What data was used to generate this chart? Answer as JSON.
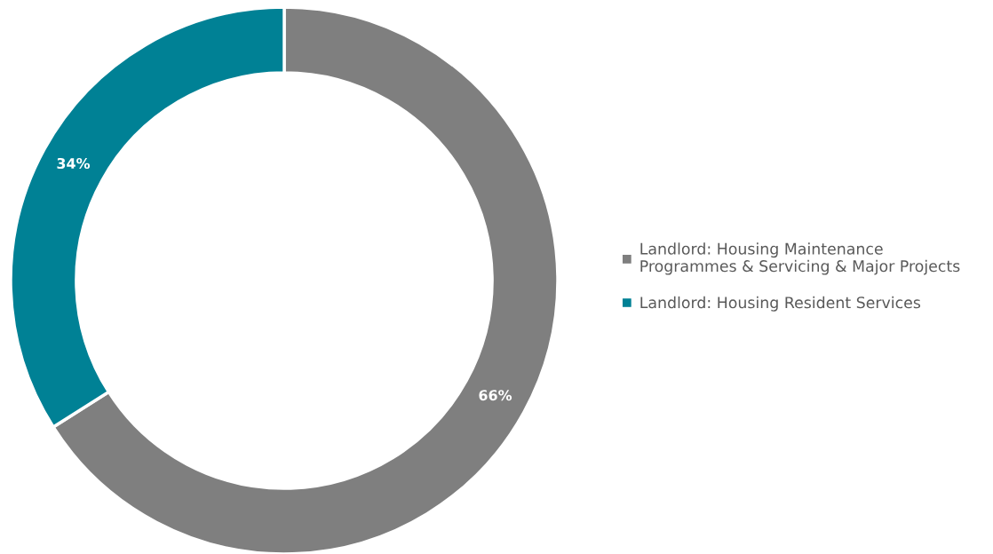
{
  "chart_data": {
    "type": "donut",
    "categories": [
      "Landlord: Housing Maintenance Programmes & Servicing & Major Projects",
      "Landlord: Housing Resident Services"
    ],
    "values": [
      66,
      34
    ],
    "value_labels": [
      "66%",
      "34%"
    ],
    "colors": [
      "#7f7f7f",
      "#008195"
    ],
    "legend": "right"
  }
}
